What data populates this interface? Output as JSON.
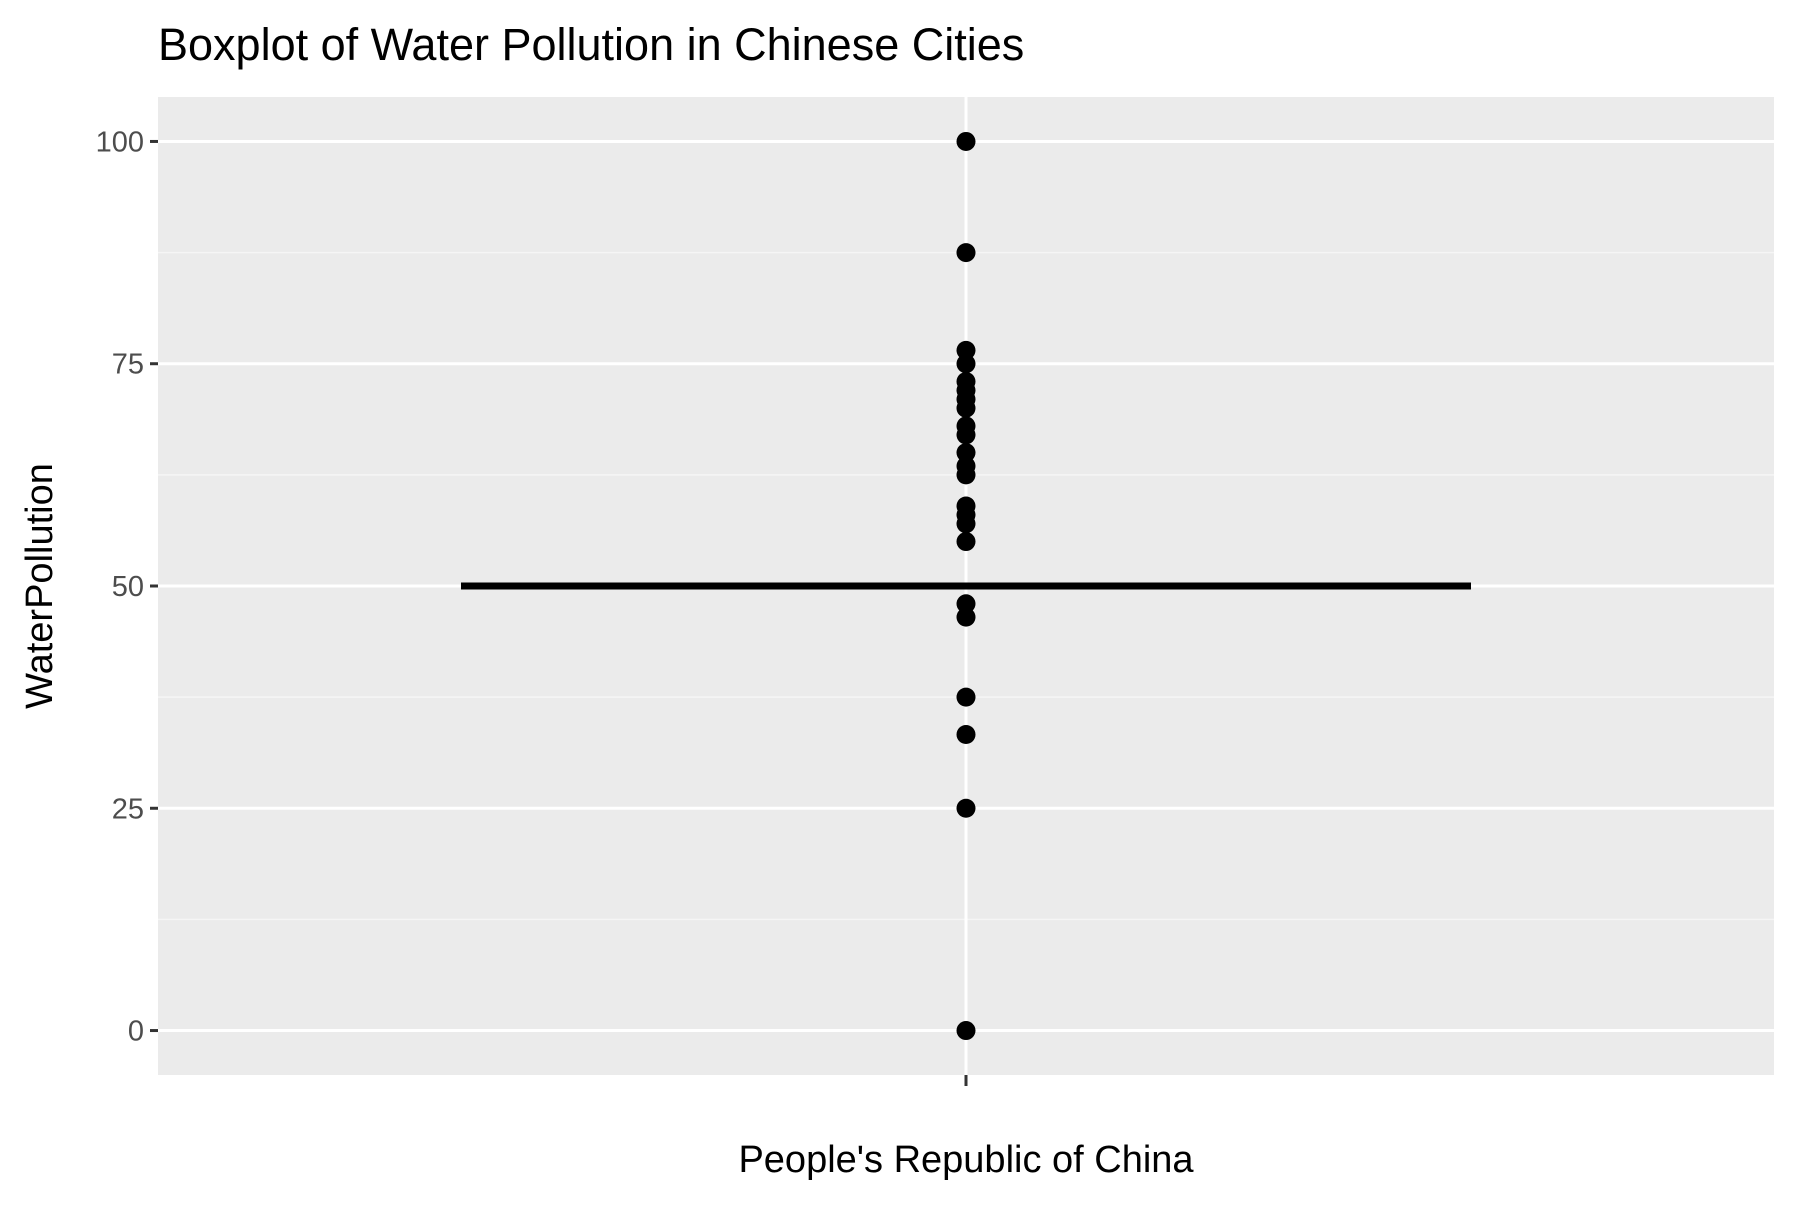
{
  "chart_data": {
    "type": "boxplot",
    "title": "Boxplot of Water Pollution in Chinese Cities",
    "xlabel": "",
    "ylabel": "WaterPollution",
    "categories": [
      "People's Republic of China"
    ],
    "ylim": [
      -5,
      105
    ],
    "yticks": [
      0,
      25,
      50,
      75,
      100
    ],
    "y_minor_gridlines": [
      12.5,
      37.5,
      62.5,
      87.5
    ],
    "grid": true,
    "legend": "none",
    "box": {
      "category": "People's Republic of China",
      "q1": 50,
      "median": 50,
      "q3": 50,
      "whisker_low": 50,
      "whisker_high": 50
    },
    "outliers": [
      100,
      87.5,
      76.5,
      75,
      73,
      72,
      71,
      70,
      68,
      67,
      65,
      63.5,
      62.5,
      59,
      58,
      57,
      55,
      48,
      46.5,
      37.5,
      33.3,
      25,
      0
    ],
    "colors": {
      "panel_background": "#ebebeb",
      "grid_major": "#ffffff",
      "grid_minor": "#f5f5f5",
      "points": "#000000",
      "box_line": "#000000",
      "tick_text": "#4d4d4d",
      "tick_mark": "#333333"
    }
  }
}
